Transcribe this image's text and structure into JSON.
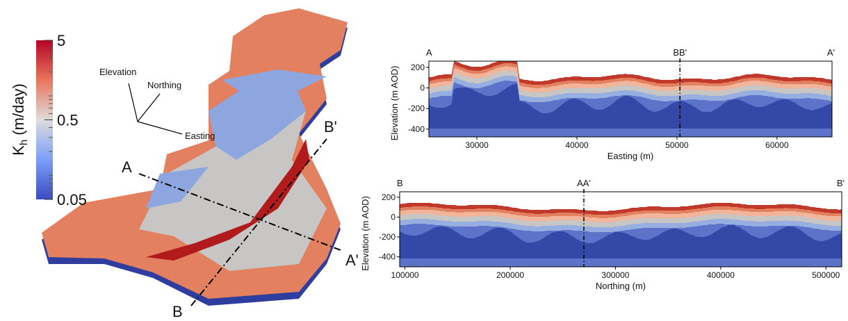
{
  "colorbar": {
    "label": {
      "symbol": "K",
      "subscript": "h",
      "unit": "(m/day)"
    },
    "scale": "log",
    "lim": [
      0.05,
      5
    ],
    "ticks": [
      5,
      0.5,
      0.05
    ]
  },
  "map": {
    "axes": [
      "Elevation",
      "Northing",
      "Easting"
    ],
    "sections": [
      "A",
      "A'",
      "B",
      "B'"
    ]
  },
  "panels": [
    {
      "labels": [
        "A",
        "BB'",
        "A'"
      ],
      "ylabel": "Elevation (m AOD)",
      "xlabel": "Easting (m)",
      "xlim": [
        25200,
        65500
      ],
      "xticks": [
        30000,
        40000,
        50000,
        60000
      ],
      "ylim": [
        -475,
        260
      ],
      "yticks": [
        -400,
        -200,
        0,
        200
      ],
      "marker": 50300
    },
    {
      "labels": [
        "B",
        "AA'",
        "B'"
      ],
      "ylabel": "Elevation (m AOD)",
      "xlabel": "Northing (m)",
      "xlim": [
        95000,
        515000
      ],
      "xticks": [
        100000,
        200000,
        300000,
        400000,
        500000
      ],
      "ylim": [
        -500,
        255
      ],
      "yticks": [
        -400,
        -200,
        0,
        200
      ],
      "marker": 270000
    }
  ]
}
